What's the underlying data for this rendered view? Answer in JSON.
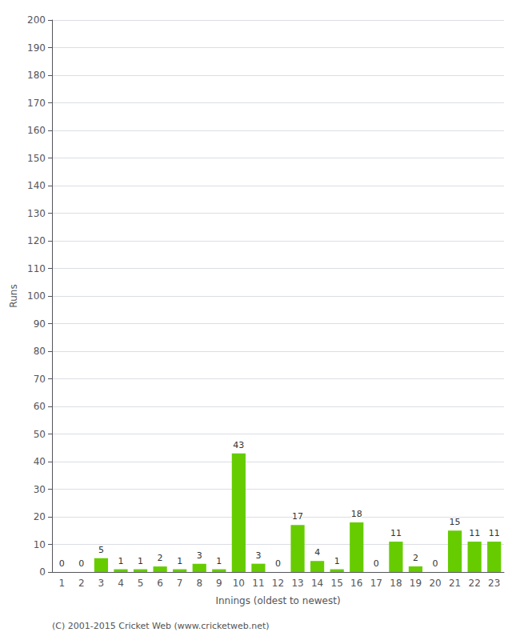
{
  "chart_data": {
    "type": "bar",
    "xlabel": "Innings (oldest to newest)",
    "ylabel": "Runs",
    "footer": "(C) 2001-2015 Cricket Web (www.cricketweb.net)",
    "categories": [
      1,
      2,
      3,
      4,
      5,
      6,
      7,
      8,
      9,
      10,
      11,
      12,
      13,
      14,
      15,
      16,
      17,
      18,
      19,
      20,
      21,
      22,
      23
    ],
    "values": [
      0,
      0,
      5,
      1,
      1,
      2,
      1,
      3,
      1,
      43,
      3,
      0,
      17,
      4,
      1,
      18,
      0,
      11,
      2,
      0,
      15,
      11,
      11
    ],
    "color": "#66cc00",
    "ylim": [
      0,
      200
    ],
    "yticks": [
      0,
      10,
      20,
      30,
      40,
      50,
      60,
      70,
      80,
      90,
      100,
      110,
      120,
      130,
      140,
      150,
      160,
      170,
      180,
      190,
      200
    ],
    "grid": true,
    "data_labels": true
  }
}
